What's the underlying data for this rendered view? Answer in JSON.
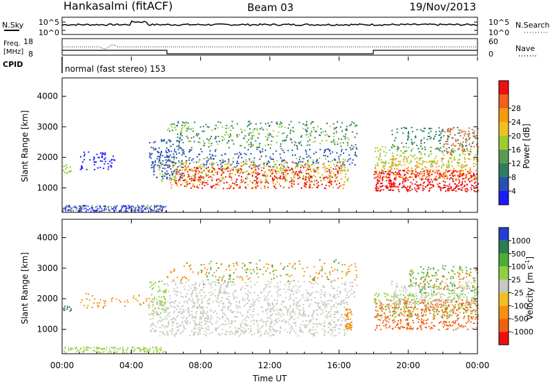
{
  "header": {
    "station": "Hankasalmi (fitACF)",
    "beam": "Beam 03",
    "date": "19/Nov/2013"
  },
  "noise_panel": {
    "left_label": "N.Sky",
    "left_ticks": [
      "10^5",
      "10^0"
    ],
    "right_ticks": [
      "10^5",
      "10^0"
    ],
    "right_label": "N.Search"
  },
  "freq_panel": {
    "left_label_1": "Freq.",
    "left_label_2": "[MHz]",
    "left_ticks": [
      "18",
      "8"
    ],
    "right_ticks": [
      "60",
      "0"
    ],
    "right_label": "Nave"
  },
  "cpid_panel": {
    "label": "CPID",
    "mode": "normal (fast stereo) 153"
  },
  "chart_data": [
    {
      "type": "heatmap",
      "name": "power",
      "ylabel": "Slant Range [km]",
      "yticks": [
        "1000",
        "2000",
        "3000",
        "4000"
      ],
      "ylim": [
        200,
        4600
      ],
      "xlim_hours": [
        0,
        24
      ],
      "colorbar": {
        "label": "Power [dB]",
        "tick_labels": [
          "4",
          "8",
          "12",
          "16",
          "20",
          "24",
          "28"
        ],
        "colors": [
          "#1a1aff",
          "#2850b0",
          "#2e7d62",
          "#5a9b50",
          "#9acd32",
          "#f0c020",
          "#f59a10",
          "#f06020",
          "#ee1010"
        ]
      }
    },
    {
      "type": "heatmap",
      "name": "velocity",
      "ylabel": "Slant Range [km]",
      "yticks": [
        "1000",
        "2000",
        "3000",
        "4000"
      ],
      "ylim": [
        200,
        4600
      ],
      "xlim_hours": [
        0,
        24
      ],
      "colorbar": {
        "label": "Velocity",
        "unit": "[m s",
        "unit_exp": "-1",
        "unit_close": "]",
        "tick_labels": [
          "1000",
          "500",
          "100",
          "25",
          "-25",
          "-100",
          "-500",
          "-1000"
        ],
        "colors": [
          "#2040d0",
          "#2e7d4a",
          "#4ab030",
          "#90d040",
          "#c8c8c0",
          "#f0c020",
          "#f59010",
          "#f06010",
          "#ee1010"
        ]
      }
    }
  ],
  "time_axis": {
    "tick_labels": [
      "00:00",
      "04:00",
      "08:00",
      "12:00",
      "16:00",
      "20:00",
      "00:00"
    ],
    "label": "Time UT"
  }
}
